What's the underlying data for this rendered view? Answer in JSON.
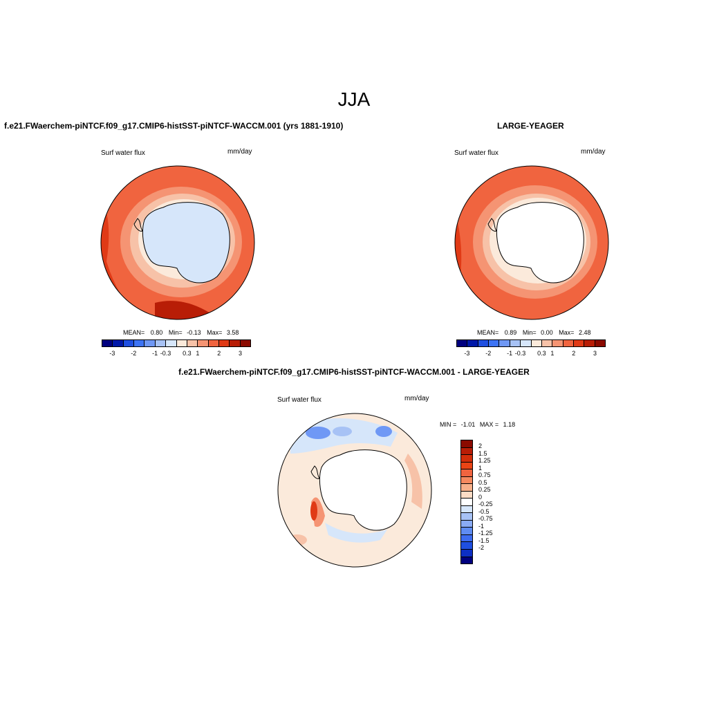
{
  "title": "JJA",
  "panels": {
    "left": {
      "title": "f.e21.FWaerchem-piNTCF.f09_g17.CMIP6-histSST-piNTCF-WACCM.001 (yrs 1881-1910)",
      "variable": "Surf water flux",
      "units": "mm/day",
      "stats": {
        "mean_label": "MEAN=",
        "mean": "0.80",
        "min_label": "Min=",
        "min": "-0.13",
        "max_label": "Max=",
        "max": "3.58"
      }
    },
    "right": {
      "title": "LARGE-YEAGER",
      "variable": "Surf water flux",
      "units": "mm/day",
      "stats": {
        "mean_label": "MEAN=",
        "mean": "0.89",
        "min_label": "Min=",
        "min": "0.00",
        "max_label": "Max=",
        "max": "2.48"
      }
    },
    "diff": {
      "title": "f.e21.FWaerchem-piNTCF.f09_g17.CMIP6-histSST-piNTCF-WACCM.001 - LARGE-YEAGER",
      "variable": "Surf water flux",
      "units": "mm/day",
      "minmax": {
        "min_label": "MIN =",
        "min": "-1.01",
        "max_label": "MAX =",
        "max": "1.18"
      }
    }
  },
  "colorbar_horizontal": {
    "colors": [
      "#00007f",
      "#0018a8",
      "#1f4fe0",
      "#3d74f5",
      "#6f98f5",
      "#a7c2f5",
      "#d6e6fa",
      "#fbeadb",
      "#f7c2a8",
      "#f59473",
      "#f0643f",
      "#e03a16",
      "#b81d06",
      "#8b0a00"
    ],
    "tick_labels": [
      "-3",
      "-2",
      "-1",
      "-0.3",
      "0.3",
      "1",
      "2",
      "3"
    ]
  },
  "colorbar_vertical": {
    "colors": [
      "#8b0a00",
      "#b81d06",
      "#d22e0a",
      "#ea4415",
      "#f0643f",
      "#f5895f",
      "#f7b08a",
      "#fbdcc5",
      "#ffffff",
      "#d6e6fa",
      "#a7c2f5",
      "#8aabf5",
      "#5f8cf2",
      "#3d6cf0",
      "#1f4fe0",
      "#0d2fc4",
      "#00007f"
    ],
    "tick_labels": [
      "2",
      "1.5",
      "1.25",
      "1",
      "0.75",
      "0.5",
      "0.25",
      "0",
      "-0.25",
      "-0.5",
      "-0.75",
      "-1",
      "-1.25",
      "-1.5",
      "-2"
    ]
  }
}
